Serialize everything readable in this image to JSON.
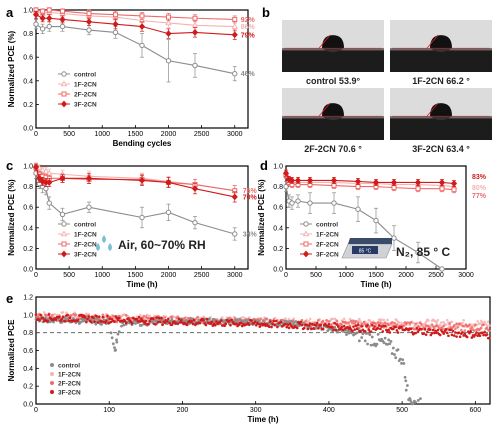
{
  "colors": {
    "control": "#8c8c8c",
    "f1": "#f4b3b3",
    "f2": "#ee6a6a",
    "f3": "#d11a1a",
    "axis": "#000000",
    "dash": "#555555",
    "airIcon": "#7cc0d6"
  },
  "panels": {
    "a": {
      "label": "a",
      "ylabel": "Normalized PCE (%)",
      "xlabel": "Bending cycles",
      "xticks": [
        "0",
        "500",
        "1000",
        "1500",
        "2000",
        "2500",
        "3000"
      ],
      "yticks": [
        "0.0",
        "0.2",
        "0.4",
        "0.6",
        "0.8",
        "1.0"
      ],
      "legend": [
        "control",
        "1F-2CN",
        "2F-2CN",
        "3F-2CN"
      ],
      "end_labels": [
        "92%",
        "86%",
        "79%",
        "46%"
      ]
    },
    "b": {
      "label": "b",
      "captions": [
        "control 53.9°",
        "1F-2CN 66.2 °",
        "2F-2CN 70.6 °",
        "3F-2CN 63.4 °"
      ]
    },
    "c": {
      "label": "c",
      "ylabel": "Normalized PCE (%)",
      "xlabel": "Time (h)",
      "xticks": [
        "0",
        "500",
        "1000",
        "1500",
        "2000",
        "2500",
        "3000"
      ],
      "yticks": [
        "0.0",
        "0.2",
        "0.4",
        "0.6",
        "0.8",
        "1.0"
      ],
      "legend": [
        "control",
        "1F-2CN",
        "2F-2CN",
        "3F-2CN"
      ],
      "end_labels": [
        "76%",
        "70%",
        "34%"
      ],
      "condition": "Air, 60~70% RH"
    },
    "d": {
      "label": "d",
      "ylabel": "Normalized PCE (%)",
      "xlabel": "Time (h)",
      "xticks": [
        "0",
        "500",
        "1000",
        "1500",
        "2000",
        "2500",
        "3000"
      ],
      "yticks": [
        "0.0",
        "0.2",
        "0.4",
        "0.6",
        "0.8",
        "1.0"
      ],
      "legend": [
        "control",
        "1F-2CN",
        "2F-2CN",
        "3F-2CN"
      ],
      "end_labels": [
        "83%",
        "80%",
        "77%"
      ],
      "condition": "N₂, 85 ° C",
      "hotplate_label": "85 °C"
    },
    "e": {
      "label": "e",
      "ylabel": "Normalized PCE",
      "xlabel": "Time (h)",
      "xticks": [
        "0",
        "100",
        "200",
        "300",
        "400",
        "500",
        "600"
      ],
      "yticks": [
        "0.0",
        "0.2",
        "0.4",
        "0.6",
        "0.8",
        "1.0",
        "1.2"
      ],
      "legend": [
        "control",
        "1F-2CN",
        "2F-2CN",
        "3F-2CN"
      ]
    }
  },
  "chart_data": [
    {
      "panel": "a",
      "type": "line",
      "xlabel": "Bending cycles",
      "ylabel": "Normalized PCE (%)",
      "xlim": [
        0,
        3200
      ],
      "ylim": [
        0,
        1.0
      ],
      "x": [
        0,
        100,
        200,
        400,
        800,
        1200,
        1600,
        2000,
        2400,
        3000
      ],
      "series": [
        {
          "name": "control",
          "values": [
            0.88,
            0.84,
            0.86,
            0.86,
            0.83,
            0.81,
            0.7,
            0.57,
            0.53,
            0.46
          ],
          "errors": [
            0.04,
            0.04,
            0.04,
            0.04,
            0.04,
            0.05,
            0.1,
            0.18,
            0.1,
            0.06
          ]
        },
        {
          "name": "1F-2CN",
          "values": [
            0.99,
            0.97,
            0.98,
            0.97,
            0.95,
            0.94,
            0.91,
            0.89,
            0.87,
            0.86
          ],
          "errors": [
            0.02,
            0.02,
            0.02,
            0.03,
            0.03,
            0.03,
            0.04,
            0.04,
            0.04,
            0.04
          ]
        },
        {
          "name": "2F-2CN",
          "values": [
            1.0,
            0.99,
            1.0,
            0.99,
            0.97,
            0.96,
            0.95,
            0.94,
            0.93,
            0.92
          ],
          "errors": [
            0.02,
            0.02,
            0.02,
            0.02,
            0.03,
            0.03,
            0.03,
            0.03,
            0.03,
            0.03
          ]
        },
        {
          "name": "3F-2CN",
          "values": [
            0.96,
            0.93,
            0.93,
            0.92,
            0.9,
            0.88,
            0.86,
            0.8,
            0.81,
            0.79
          ],
          "errors": [
            0.03,
            0.03,
            0.03,
            0.03,
            0.03,
            0.04,
            0.04,
            0.04,
            0.04,
            0.04
          ]
        }
      ]
    },
    {
      "panel": "c",
      "type": "line",
      "xlabel": "Time (h)",
      "ylabel": "Normalized PCE (%)",
      "xlim": [
        0,
        3200
      ],
      "ylim": [
        0,
        1.0
      ],
      "x": [
        0,
        50,
        100,
        150,
        200,
        400,
        800,
        1600,
        2000,
        2400,
        3000
      ],
      "series": [
        {
          "name": "control",
          "values": [
            0.93,
            0.83,
            0.8,
            0.78,
            0.64,
            0.53,
            0.6,
            0.5,
            0.55,
            0.45,
            0.34
          ],
          "errors": [
            0.05,
            0.05,
            0.06,
            0.06,
            0.06,
            0.06,
            0.05,
            0.1,
            0.08,
            0.06,
            0.06
          ]
        },
        {
          "name": "1F-2CN",
          "values": [
            1.0,
            0.98,
            0.96,
            0.95,
            0.93,
            0.92,
            0.9,
            0.88,
            0.85,
            0.82,
            0.76
          ],
          "errors": [
            0.03,
            0.03,
            0.03,
            0.04,
            0.04,
            0.04,
            0.05,
            0.05,
            0.05,
            0.05,
            0.05
          ]
        },
        {
          "name": "2F-2CN",
          "values": [
            0.98,
            0.92,
            0.9,
            0.89,
            0.88,
            0.88,
            0.87,
            0.87,
            0.84,
            0.82,
            0.76
          ],
          "errors": [
            0.03,
            0.03,
            0.03,
            0.03,
            0.03,
            0.04,
            0.04,
            0.05,
            0.05,
            0.05,
            0.05
          ]
        },
        {
          "name": "3F-2CN",
          "values": [
            0.99,
            0.88,
            0.85,
            0.84,
            0.84,
            0.88,
            0.88,
            0.86,
            0.84,
            0.78,
            0.7
          ],
          "errors": [
            0.03,
            0.04,
            0.04,
            0.04,
            0.04,
            0.04,
            0.05,
            0.05,
            0.05,
            0.05,
            0.05
          ]
        }
      ]
    },
    {
      "panel": "d",
      "type": "line",
      "xlabel": "Time (h)",
      "ylabel": "Normalized PCE (%)",
      "xlim": [
        0,
        3000
      ],
      "ylim": [
        0,
        1.0
      ],
      "x": [
        0,
        50,
        100,
        200,
        400,
        800,
        1200,
        1500,
        1800,
        2200,
        2600,
        2800
      ],
      "series": [
        {
          "name": "control",
          "values": [
            0.8,
            0.66,
            0.64,
            0.66,
            0.64,
            0.64,
            0.58,
            0.47,
            0.3,
            0.16,
            0.0,
            null
          ],
          "errors": [
            0.05,
            0.06,
            0.06,
            0.06,
            0.1,
            0.1,
            0.12,
            0.12,
            0.12,
            0.1,
            0.0,
            null
          ]
        },
        {
          "name": "1F-2CN",
          "values": [
            0.92,
            0.86,
            0.84,
            0.84,
            0.84,
            0.84,
            0.83,
            0.83,
            0.82,
            0.82,
            0.81,
            0.8
          ],
          "errors": [
            0.03,
            0.03,
            0.03,
            0.03,
            0.03,
            0.03,
            0.03,
            0.03,
            0.03,
            0.03,
            0.03,
            0.03
          ]
        },
        {
          "name": "2F-2CN",
          "values": [
            0.91,
            0.84,
            0.82,
            0.82,
            0.82,
            0.81,
            0.8,
            0.8,
            0.79,
            0.78,
            0.78,
            0.77
          ],
          "errors": [
            0.03,
            0.03,
            0.03,
            0.03,
            0.03,
            0.03,
            0.03,
            0.03,
            0.03,
            0.03,
            0.03,
            0.03
          ]
        },
        {
          "name": "3F-2CN",
          "values": [
            0.93,
            0.87,
            0.86,
            0.86,
            0.86,
            0.86,
            0.85,
            0.84,
            0.84,
            0.84,
            0.84,
            0.83
          ],
          "errors": [
            0.03,
            0.03,
            0.03,
            0.03,
            0.03,
            0.03,
            0.03,
            0.03,
            0.03,
            0.03,
            0.03,
            0.03
          ]
        }
      ]
    },
    {
      "panel": "e",
      "type": "scatter",
      "xlabel": "Time (h)",
      "ylabel": "Normalized PCE",
      "xlim": [
        0,
        620
      ],
      "ylim": [
        0,
        1.2
      ],
      "reference_line": 0.8,
      "series": [
        {
          "name": "control",
          "description_points": [
            [
              0,
              0.95
            ],
            [
              100,
              0.92
            ],
            [
              105,
              0.72
            ],
            [
              108,
              0.6
            ],
            [
              115,
              0.9
            ],
            [
              200,
              0.93
            ],
            [
              300,
              0.92
            ],
            [
              350,
              0.9
            ],
            [
              400,
              0.85
            ],
            [
              450,
              0.76
            ],
            [
              480,
              0.66
            ],
            [
              500,
              0.52
            ],
            [
              505,
              0.26
            ],
            [
              510,
              0.02
            ],
            [
              520,
              0.03
            ]
          ]
        },
        {
          "name": "1F-2CN",
          "description_points": [
            [
              0,
              1.0
            ],
            [
              100,
              0.97
            ],
            [
              200,
              0.95
            ],
            [
              300,
              0.93
            ],
            [
              400,
              0.92
            ],
            [
              500,
              0.91
            ],
            [
              620,
              0.9
            ]
          ]
        },
        {
          "name": "2F-2CN",
          "description_points": [
            [
              0,
              0.98
            ],
            [
              100,
              0.96
            ],
            [
              200,
              0.94
            ],
            [
              300,
              0.92
            ],
            [
              400,
              0.9
            ],
            [
              500,
              0.88
            ],
            [
              620,
              0.85
            ]
          ]
        },
        {
          "name": "3F-2CN",
          "description_points": [
            [
              0,
              0.97
            ],
            [
              100,
              0.95
            ],
            [
              200,
              0.92
            ],
            [
              300,
              0.9
            ],
            [
              400,
              0.87
            ],
            [
              500,
              0.83
            ],
            [
              620,
              0.77
            ]
          ]
        }
      ]
    }
  ]
}
